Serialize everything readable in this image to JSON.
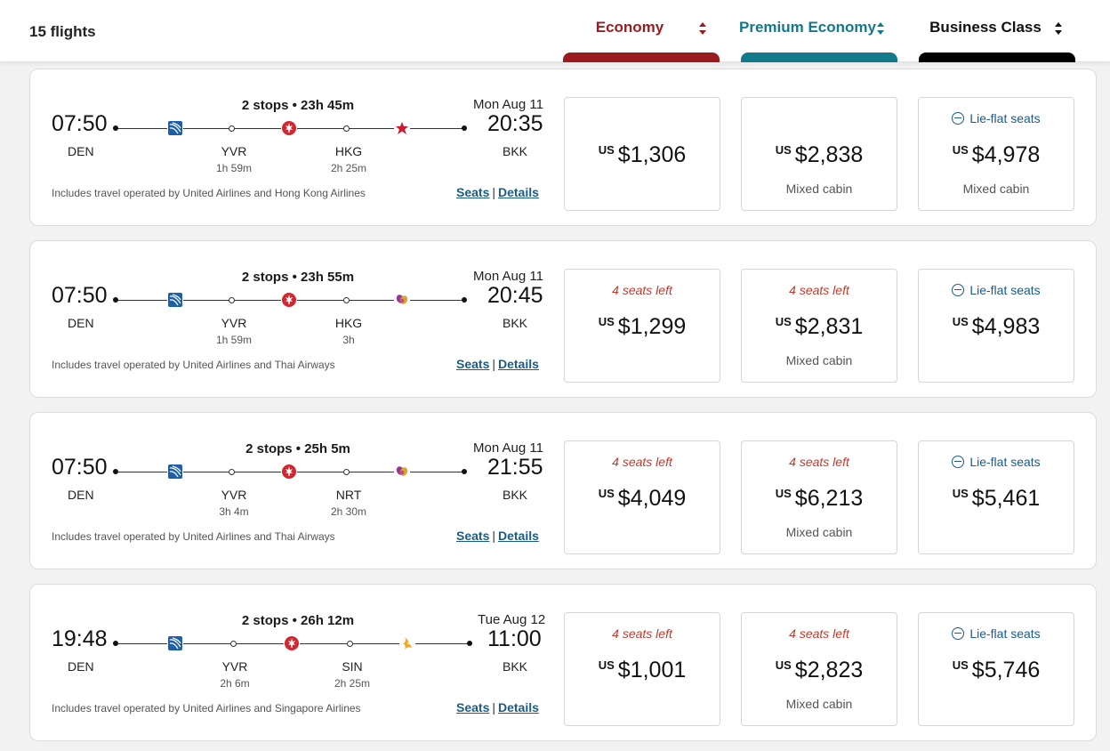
{
  "header": {
    "flight_count": "15 flights",
    "tabs": [
      {
        "label": "Economy",
        "color": "#9b1b1f"
      },
      {
        "label": "Premium Economy",
        "color": "#127b8b"
      },
      {
        "label": "Business Class",
        "color": "#000000"
      }
    ]
  },
  "flights": [
    {
      "dep_time": "07:50",
      "dep_airport": "DEN",
      "arr_time": "20:35",
      "arr_airport": "BKK",
      "arr_date": "Mon Aug 11",
      "summary": "2 stops • 23h 45m",
      "stops": [
        {
          "code": "YVR",
          "layover": "1h 59m"
        },
        {
          "code": "HKG",
          "layover": "2h 25m"
        }
      ],
      "carrier_icons": [
        "united-airlines-logo-icon",
        "air-canada-logo-icon",
        "hong-kong-airlines-logo-icon"
      ],
      "operated_by": "Includes travel operated by United Airlines and Hong Kong Airlines",
      "links": {
        "seats": "Seats",
        "details": "Details",
        "separator": "|"
      },
      "fares": {
        "economy": {
          "currency": "US",
          "price": "$1,306",
          "notice": "",
          "cabin_note": ""
        },
        "premium": {
          "currency": "US",
          "price": "$2,838",
          "notice": "",
          "cabin_note": "Mixed cabin"
        },
        "business": {
          "currency": "US",
          "price": "$4,978",
          "feature": "Lie-flat seats",
          "cabin_note": "Mixed cabin"
        }
      }
    },
    {
      "dep_time": "07:50",
      "dep_airport": "DEN",
      "arr_time": "20:45",
      "arr_airport": "BKK",
      "arr_date": "Mon Aug 11",
      "summary": "2 stops • 23h 55m",
      "stops": [
        {
          "code": "YVR",
          "layover": "1h 59m"
        },
        {
          "code": "HKG",
          "layover": "3h"
        }
      ],
      "carrier_icons": [
        "united-airlines-logo-icon",
        "air-canada-logo-icon",
        "thai-airways-logo-icon"
      ],
      "operated_by": "Includes travel operated by United Airlines and Thai Airways",
      "links": {
        "seats": "Seats",
        "details": "Details",
        "separator": "|"
      },
      "fares": {
        "economy": {
          "currency": "US",
          "price": "$1,299",
          "notice": "4 seats left",
          "cabin_note": ""
        },
        "premium": {
          "currency": "US",
          "price": "$2,831",
          "notice": "4 seats left",
          "cabin_note": "Mixed cabin"
        },
        "business": {
          "currency": "US",
          "price": "$4,983",
          "feature": "Lie-flat seats",
          "cabin_note": ""
        }
      }
    },
    {
      "dep_time": "07:50",
      "dep_airport": "DEN",
      "arr_time": "21:55",
      "arr_airport": "BKK",
      "arr_date": "Mon Aug 11",
      "summary": "2 stops • 25h 5m",
      "stops": [
        {
          "code": "YVR",
          "layover": "3h 4m"
        },
        {
          "code": "NRT",
          "layover": "2h 30m"
        }
      ],
      "carrier_icons": [
        "united-airlines-logo-icon",
        "air-canada-logo-icon",
        "thai-airways-logo-icon"
      ],
      "operated_by": "Includes travel operated by United Airlines and Thai Airways",
      "links": {
        "seats": "Seats",
        "details": "Details",
        "separator": "|"
      },
      "fares": {
        "economy": {
          "currency": "US",
          "price": "$4,049",
          "notice": "4 seats left",
          "cabin_note": ""
        },
        "premium": {
          "currency": "US",
          "price": "$6,213",
          "notice": "4 seats left",
          "cabin_note": "Mixed cabin"
        },
        "business": {
          "currency": "US",
          "price": "$5,461",
          "feature": "Lie-flat seats",
          "cabin_note": ""
        }
      }
    },
    {
      "dep_time": "19:48",
      "dep_airport": "DEN",
      "arr_time": "11:00",
      "arr_airport": "BKK",
      "arr_date": "Tue Aug 12",
      "summary": "2 stops • 26h 12m",
      "stops": [
        {
          "code": "YVR",
          "layover": "2h 6m"
        },
        {
          "code": "SIN",
          "layover": "2h 25m"
        }
      ],
      "carrier_icons": [
        "united-airlines-logo-icon",
        "air-canada-logo-icon",
        "singapore-airlines-logo-icon"
      ],
      "operated_by": "Includes travel operated by United Airlines and Singapore Airlines",
      "links": {
        "seats": "Seats",
        "details": "Details",
        "separator": "|"
      },
      "fares": {
        "economy": {
          "currency": "US",
          "price": "$1,001",
          "notice": "4 seats left",
          "cabin_note": ""
        },
        "premium": {
          "currency": "US",
          "price": "$2,823",
          "notice": "4 seats left",
          "cabin_note": "Mixed cabin"
        },
        "business": {
          "currency": "US",
          "price": "$5,746",
          "feature": "Lie-flat seats",
          "cabin_note": ""
        }
      }
    }
  ]
}
